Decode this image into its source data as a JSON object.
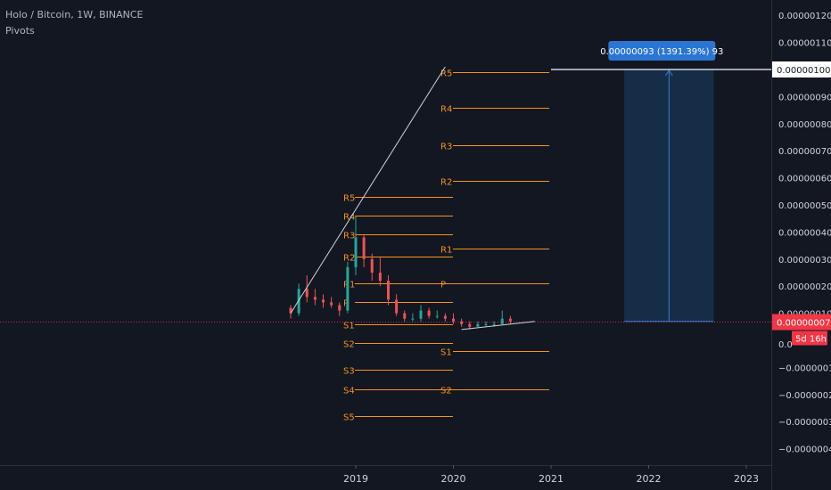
{
  "header": {
    "symbol_title": "Holo / Bitcoin, 1W, BINANCE",
    "indicator": "Pivots"
  },
  "colors": {
    "background": "#131722",
    "grid": "#1e222d",
    "axis_text": "#d1d4dc",
    "candle_up": "#26a69a",
    "candle_down": "#ef5350",
    "pivot_line": "#f7931a",
    "pivot_label": "#f7931a",
    "trend_line": "#d1d4dc",
    "projection_fill": "#17304d",
    "projection_border": "#3a7bd5",
    "tooltip_bg": "#2a76d2",
    "current_price_bg": "#f23645"
  },
  "axes": {
    "y_ticks": [
      "0.00000120",
      "0.00000110",
      "0.00000100",
      "0.00000090",
      "0.00000080",
      "0.00000070",
      "0.00000060",
      "0.00000050",
      "0.00000040",
      "0.00000030",
      "0.00000020",
      "0.00000010",
      "0.00000007",
      "0.0",
      "−0.00000010",
      "−0.00000020",
      "−0.00000030",
      "−0.00000040"
    ],
    "x_ticks": [
      "2019",
      "2020",
      "2021",
      "2022",
      "2023"
    ]
  },
  "price_badges": {
    "target": "0.00000100",
    "current": "0.00000007",
    "countdown": "5d 16h"
  },
  "tooltip": {
    "text": "0.00000093 (1391.39%) 93"
  },
  "chart_data": {
    "type": "candlestick",
    "x_range": [
      "2018-03",
      "2023-06"
    ],
    "ylim": [
      -4.3e-07,
      1.23e-06
    ],
    "grid": false,
    "pivot_sets": [
      {
        "period": "2018",
        "levels": [
          {
            "label": "R5",
            "value": 5.3e-07
          },
          {
            "label": "R4",
            "value": 4.6e-07
          },
          {
            "label": "R3",
            "value": 3.9e-07
          },
          {
            "label": "R2",
            "value": 3.1e-07
          },
          {
            "label": "R1",
            "value": 2.1e-07
          },
          {
            "label": "P",
            "value": 1.4e-07
          },
          {
            "label": "S1",
            "value": 6e-08
          },
          {
            "label": "S2",
            "value": -1e-08
          },
          {
            "label": "S3",
            "value": -1.1e-07
          },
          {
            "label": "S4",
            "value": -1.8e-07
          },
          {
            "label": "S5",
            "value": -2.8e-07
          }
        ]
      },
      {
        "period": "2019",
        "levels": [
          {
            "label": "R5",
            "value": 9.9e-07
          },
          {
            "label": "R4",
            "value": 8.6e-07
          },
          {
            "label": "R3",
            "value": 7.2e-07
          },
          {
            "label": "R2",
            "value": 5.9e-07
          },
          {
            "label": "R1",
            "value": 3.4e-07
          },
          {
            "label": "P",
            "value": 2.1e-07
          },
          {
            "label": "S1",
            "value": -4e-08
          },
          {
            "label": "S2",
            "value": -1.8e-07
          }
        ]
      }
    ],
    "price_series": [
      {
        "date": "2018-05",
        "open": 1.2e-07,
        "high": 1.3e-07,
        "low": 8e-08,
        "close": 1e-07
      },
      {
        "date": "2018-06",
        "open": 1e-07,
        "high": 2.1e-07,
        "low": 9e-08,
        "close": 1.9e-07
      },
      {
        "date": "2018-07",
        "open": 1.9e-07,
        "high": 2.4e-07,
        "low": 1.4e-07,
        "close": 1.6e-07
      },
      {
        "date": "2018-08",
        "open": 1.6e-07,
        "high": 1.9e-07,
        "low": 1.3e-07,
        "close": 1.5e-07
      },
      {
        "date": "2018-09",
        "open": 1.5e-07,
        "high": 1.7e-07,
        "low": 1.2e-07,
        "close": 1.4e-07
      },
      {
        "date": "2018-10",
        "open": 1.4e-07,
        "high": 1.6e-07,
        "low": 1.2e-07,
        "close": 1.3e-07
      },
      {
        "date": "2018-11",
        "open": 1.3e-07,
        "high": 1.4e-07,
        "low": 9e-08,
        "close": 1.1e-07
      },
      {
        "date": "2018-12",
        "open": 1.1e-07,
        "high": 2.9e-07,
        "low": 1e-07,
        "close": 2.7e-07
      },
      {
        "date": "2019-01",
        "open": 2.7e-07,
        "high": 4.6e-07,
        "low": 2.4e-07,
        "close": 3.8e-07
      },
      {
        "date": "2019-02",
        "open": 3.8e-07,
        "high": 3.9e-07,
        "low": 2.7e-07,
        "close": 3e-07
      },
      {
        "date": "2019-03",
        "open": 3e-07,
        "high": 3.2e-07,
        "low": 2.2e-07,
        "close": 2.5e-07
      },
      {
        "date": "2019-04",
        "open": 2.5e-07,
        "high": 3.1e-07,
        "low": 2e-07,
        "close": 2.2e-07
      },
      {
        "date": "2019-05",
        "open": 2.2e-07,
        "high": 2.4e-07,
        "low": 1.3e-07,
        "close": 1.5e-07
      },
      {
        "date": "2019-06",
        "open": 1.5e-07,
        "high": 1.7e-07,
        "low": 9e-08,
        "close": 1e-07
      },
      {
        "date": "2019-07",
        "open": 1e-07,
        "high": 1.1e-07,
        "low": 7e-08,
        "close": 8e-08
      },
      {
        "date": "2019-08",
        "open": 8e-08,
        "high": 1e-07,
        "low": 7e-08,
        "close": 8e-08
      },
      {
        "date": "2019-09",
        "open": 8e-08,
        "high": 1.3e-07,
        "low": 7e-08,
        "close": 1.1e-07
      },
      {
        "date": "2019-10",
        "open": 1.1e-07,
        "high": 1.2e-07,
        "low": 8e-08,
        "close": 9e-08
      },
      {
        "date": "2019-11",
        "open": 9e-08,
        "high": 1.1e-07,
        "low": 8e-08,
        "close": 9e-08
      },
      {
        "date": "2019-12",
        "open": 9e-08,
        "high": 1e-07,
        "low": 7e-08,
        "close": 8e-08
      },
      {
        "date": "2020-01",
        "open": 8e-08,
        "high": 1e-07,
        "low": 6e-08,
        "close": 7e-08
      },
      {
        "date": "2020-02",
        "open": 7e-08,
        "high": 8e-08,
        "low": 5e-08,
        "close": 6e-08
      },
      {
        "date": "2020-03",
        "open": 6e-08,
        "high": 7e-08,
        "low": 4e-08,
        "close": 5e-08
      },
      {
        "date": "2020-04",
        "open": 5e-08,
        "high": 7e-08,
        "low": 5e-08,
        "close": 6e-08
      },
      {
        "date": "2020-05",
        "open": 6e-08,
        "high": 7e-08,
        "low": 5e-08,
        "close": 6e-08
      },
      {
        "date": "2020-06",
        "open": 6e-08,
        "high": 7e-08,
        "low": 5e-08,
        "close": 6e-08
      },
      {
        "date": "2020-07",
        "open": 6e-08,
        "high": 1.1e-07,
        "low": 6e-08,
        "close": 8e-08
      },
      {
        "date": "2020-08",
        "open": 8e-08,
        "high": 9e-08,
        "low": 6e-08,
        "close": 7e-08
      }
    ],
    "drawings": {
      "trend_line_up": {
        "from": [
          "2018-05",
          1e-07
        ],
        "to": [
          "2019-12",
          1.01e-06
        ]
      },
      "support_line": {
        "from": [
          "2020-02",
          4e-08
        ],
        "to": [
          "2020-11",
          7e-08
        ]
      },
      "target_line": {
        "from": [
          "2021-01",
          1e-06
        ],
        "to": [
          "2023-06",
          1e-06
        ]
      },
      "projection": {
        "from_date": "2021-10",
        "to_date": "2022-09",
        "low": 7e-08,
        "high": 1e-06
      }
    }
  }
}
